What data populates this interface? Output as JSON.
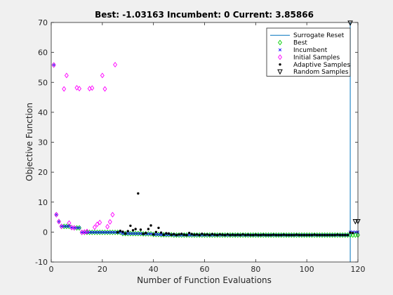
{
  "chart_data": {
    "type": "scatter",
    "title": "Best: -1.03163 Incumbent: 0 Current: 3.85866",
    "xlabel": "Number of Function Evaluations",
    "ylabel": "Objective Function",
    "xlim": [
      0,
      120
    ],
    "ylim": [
      -10,
      70
    ],
    "xticks": [
      "0",
      "20",
      "40",
      "60",
      "80",
      "100",
      "120"
    ],
    "yticks": [
      "-10",
      "0",
      "10",
      "20",
      "30",
      "40",
      "50",
      "60",
      "70"
    ],
    "grid": false,
    "legend_position": "top-right",
    "surrogate_reset_x": 117,
    "series": [
      {
        "name": "Surrogate Reset",
        "kind": "vline",
        "color": "#0072bd"
      },
      {
        "name": "Best",
        "kind": "marker-diamond-open",
        "color": "#00d000",
        "x": [
          1,
          2,
          3,
          4,
          5,
          6,
          7,
          8,
          9,
          10,
          11,
          12,
          13,
          14,
          15,
          16,
          17,
          18,
          19,
          20,
          21,
          22,
          23,
          24,
          25,
          26,
          27,
          28,
          29,
          30,
          31,
          32,
          33,
          34,
          35,
          36,
          37,
          38,
          39,
          40,
          41,
          42,
          43,
          44,
          45,
          46,
          47,
          48,
          49,
          50,
          51,
          52,
          53,
          54,
          55,
          56,
          57,
          58,
          59,
          60,
          61,
          62,
          63,
          64,
          65,
          66,
          67,
          68,
          69,
          70,
          71,
          72,
          73,
          74,
          75,
          76,
          77,
          78,
          79,
          80,
          81,
          82,
          83,
          84,
          85,
          86,
          87,
          88,
          89,
          90,
          91,
          92,
          93,
          94,
          95,
          96,
          97,
          98,
          99,
          100,
          101,
          102,
          103,
          104,
          105,
          106,
          107,
          108,
          109,
          110,
          111,
          112,
          113,
          114,
          115,
          116,
          117,
          118,
          119,
          120
        ],
        "y": [
          55.8,
          5.8,
          3.5,
          1.9,
          1.9,
          1.9,
          1.9,
          1.5,
          1.4,
          1.4,
          1.4,
          -0.1,
          -0.1,
          -0.1,
          -0.1,
          -0.1,
          -0.1,
          -0.1,
          -0.1,
          -0.1,
          -0.1,
          -0.1,
          -0.1,
          -0.1,
          -0.1,
          -0.1,
          -0.1,
          -0.5,
          -0.5,
          -0.5,
          -0.5,
          -0.5,
          -0.5,
          -0.5,
          -0.5,
          -0.6,
          -0.6,
          -0.6,
          -0.6,
          -0.8,
          -0.8,
          -0.8,
          -0.9,
          -0.9,
          -0.9,
          -0.9,
          -0.9,
          -1.0,
          -1.0,
          -1.0,
          -1.0,
          -1.0,
          -1.0,
          -1.0,
          -1.0,
          -1.0,
          -1.0,
          -1.0,
          -1.0,
          -1.0,
          -1.0,
          -1.0,
          -1.0,
          -1.0,
          -1.0,
          -1.0,
          -1.0,
          -1.0,
          -1.0,
          -1.0,
          -1.0,
          -1.0,
          -1.0,
          -1.0,
          -1.0,
          -1.0,
          -1.0,
          -1.0,
          -1.0,
          -1.0,
          -1.0,
          -1.0,
          -1.0,
          -1.0,
          -1.0,
          -1.0,
          -1.0,
          -1.0,
          -1.0,
          -1.0,
          -1.0,
          -1.0,
          -1.0,
          -1.0,
          -1.0,
          -1.0,
          -1.0,
          -1.0,
          -1.0,
          -1.0,
          -1.0,
          -1.0,
          -1.0,
          -1.0,
          -1.0,
          -1.0,
          -1.0,
          -1.0,
          -1.0,
          -1.0,
          -1.0,
          -1.0,
          -1.0,
          -1.0,
          -1.0,
          -1.0,
          -1.0,
          -1.0,
          -1.0,
          -1.0
        ]
      },
      {
        "name": "Incumbent",
        "kind": "marker-x",
        "color": "#0000ff",
        "x": [
          1,
          2,
          3,
          4,
          5,
          6,
          7,
          8,
          9,
          10,
          11,
          12,
          13,
          14,
          15,
          16,
          17,
          18,
          19,
          20,
          21,
          22,
          23,
          24,
          25,
          26,
          27,
          28,
          29,
          30,
          31,
          32,
          33,
          34,
          35,
          36,
          37,
          38,
          39,
          40,
          41,
          42,
          43,
          44,
          45,
          46,
          47,
          48,
          49,
          50,
          51,
          52,
          53,
          54,
          55,
          56,
          57,
          58,
          59,
          60,
          61,
          62,
          63,
          64,
          65,
          66,
          67,
          68,
          69,
          70,
          71,
          72,
          73,
          74,
          75,
          76,
          77,
          78,
          79,
          80,
          81,
          82,
          83,
          84,
          85,
          86,
          87,
          88,
          89,
          90,
          91,
          92,
          93,
          94,
          95,
          96,
          97,
          98,
          99,
          100,
          101,
          102,
          103,
          104,
          105,
          106,
          107,
          108,
          109,
          110,
          111,
          112,
          113,
          114,
          115,
          116,
          117,
          118,
          119,
          120
        ],
        "y": [
          55.8,
          5.8,
          3.5,
          1.9,
          1.9,
          1.9,
          1.9,
          1.5,
          1.4,
          1.4,
          1.4,
          -0.1,
          -0.1,
          -0.1,
          -0.1,
          -0.1,
          -0.1,
          -0.1,
          -0.1,
          -0.1,
          -0.1,
          -0.1,
          -0.1,
          -0.1,
          -0.1,
          -0.1,
          -0.1,
          -0.5,
          -0.5,
          -0.5,
          -0.5,
          -0.5,
          -0.5,
          -0.5,
          -0.5,
          -0.6,
          -0.6,
          -0.6,
          -0.6,
          -0.8,
          -0.8,
          -0.8,
          -0.9,
          -0.9,
          -0.9,
          -0.9,
          -0.9,
          -1.0,
          -1.0,
          -1.0,
          -1.0,
          -1.0,
          -1.0,
          -1.0,
          -1.0,
          -1.0,
          -1.0,
          -1.0,
          -1.0,
          -1.0,
          -1.0,
          -1.0,
          -1.0,
          -1.0,
          -1.0,
          -1.0,
          -1.0,
          -1.0,
          -1.0,
          -1.0,
          -1.0,
          -1.0,
          -1.0,
          -1.0,
          -1.0,
          -1.0,
          -1.0,
          -1.0,
          -1.0,
          -1.0,
          -1.0,
          -1.0,
          -1.0,
          -1.0,
          -1.0,
          -1.0,
          -1.0,
          -1.0,
          -1.0,
          -1.0,
          -1.0,
          -1.0,
          -1.0,
          -1.0,
          -1.0,
          -1.0,
          -1.0,
          -1.0,
          -1.0,
          -1.0,
          -1.0,
          -1.0,
          -1.0,
          -1.0,
          -1.0,
          -1.0,
          -1.0,
          -1.0,
          -1.0,
          -1.0,
          -1.0,
          -1.0,
          -1.0,
          -1.0,
          -1.0,
          -1.0,
          0,
          0,
          0,
          0
        ]
      },
      {
        "name": "Initial Samples",
        "kind": "marker-diamond-open",
        "color": "#ff00ff",
        "x": [
          1,
          2,
          3,
          4,
          5,
          6,
          7,
          8,
          9,
          10,
          11,
          12,
          13,
          14,
          15,
          16,
          17,
          18,
          19,
          20,
          21,
          22,
          23,
          24,
          25
        ],
        "y": [
          55.8,
          5.8,
          3.5,
          1.9,
          47.8,
          52.3,
          3.0,
          1.5,
          1.4,
          48.2,
          47.9,
          -0.1,
          0.0,
          0.2,
          47.9,
          48.1,
          1.6,
          2.6,
          3.2,
          52.3,
          47.8,
          1.8,
          3.4,
          5.8,
          55.9
        ]
      },
      {
        "name": "Adaptive Samples",
        "kind": "marker-dot",
        "color": "#000000",
        "x": [
          26,
          27,
          28,
          29,
          30,
          31,
          32,
          33,
          34,
          35,
          36,
          37,
          38,
          39,
          40,
          41,
          42,
          43,
          44,
          45,
          46,
          47,
          48,
          49,
          50,
          51,
          52,
          53,
          54,
          55,
          56,
          57,
          58,
          59,
          60,
          61,
          62,
          63,
          64,
          65,
          66,
          67,
          68,
          69,
          70,
          71,
          72,
          73,
          74,
          75,
          76,
          77,
          78,
          79,
          80,
          81,
          82,
          83,
          84,
          85,
          86,
          87,
          88,
          89,
          90,
          91,
          92,
          93,
          94,
          95,
          96,
          97,
          98,
          99,
          100,
          101,
          102,
          103,
          104,
          105,
          106,
          107,
          108,
          109,
          110,
          111,
          112,
          113,
          114,
          115,
          116,
          117,
          118
        ],
        "y": [
          -0.1,
          0.4,
          0.1,
          -0.5,
          0.3,
          2.1,
          0.6,
          1.0,
          12.9,
          0.8,
          -0.6,
          -0.3,
          1.0,
          2.2,
          -0.8,
          0.0,
          1.4,
          -0.2,
          -0.9,
          -0.4,
          -0.5,
          -0.9,
          -0.7,
          -1.0,
          -0.8,
          -0.6,
          -0.9,
          -1.0,
          -0.3,
          -0.7,
          -0.9,
          -0.8,
          -1.0,
          -0.6,
          -0.9,
          -0.8,
          -1.0,
          -0.7,
          -0.9,
          -1.0,
          -0.8,
          -0.9,
          -1.0,
          -0.8,
          -1.0,
          -0.9,
          -1.0,
          -0.9,
          -1.0,
          -0.8,
          -1.0,
          -0.9,
          -1.0,
          -1.0,
          -0.9,
          -1.0,
          -1.0,
          -0.9,
          -1.0,
          -1.0,
          -1.0,
          -0.9,
          -1.0,
          -1.0,
          -1.0,
          -0.9,
          -1.0,
          -1.0,
          -1.0,
          -1.0,
          -0.9,
          -1.0,
          -1.0,
          -1.0,
          -1.0,
          -1.0,
          -1.0,
          -0.9,
          -1.0,
          -1.0,
          -1.0,
          -1.0,
          -1.0,
          -1.0,
          -1.0,
          -1.0,
          -0.9,
          -1.0,
          -1.0,
          -1.0,
          -1.0,
          -0.2,
          -0.3
        ]
      },
      {
        "name": "Random Samples",
        "kind": "marker-triangle-down",
        "color": "#000000",
        "x": [
          117,
          119,
          120
        ],
        "y": [
          69.8,
          3.5,
          3.5
        ]
      }
    ]
  }
}
